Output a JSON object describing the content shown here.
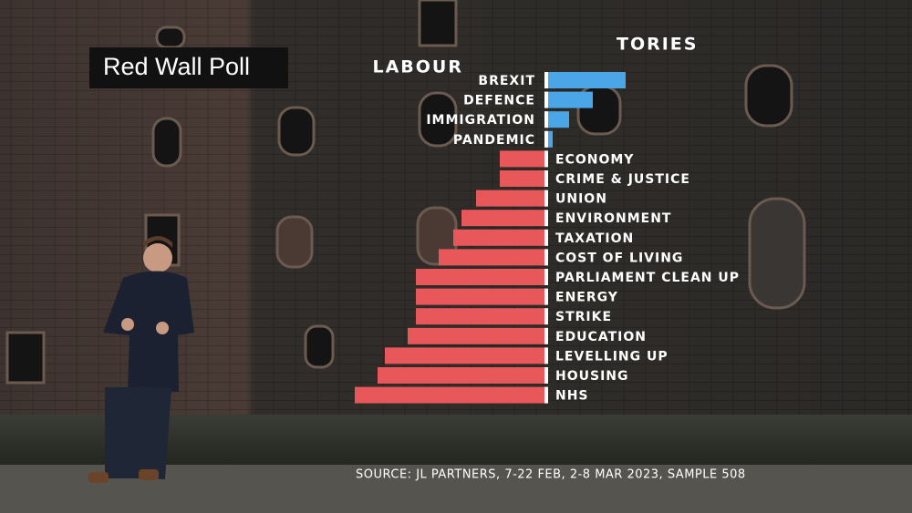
{
  "chart_data": {
    "type": "diverging-bar",
    "title": "Red Wall Poll",
    "source": "SOURCE:  JL PARTNERS, 7-22 FEB, 2-8 MAR 2023, SAMPLE 508",
    "categories": [
      "BREXIT",
      "DEFENCE",
      "IMMIGRATION",
      "PANDEMIC",
      "ECONOMY",
      "CRIME & JUSTICE",
      "UNION",
      "ENVIRONMENT",
      "TAXATION",
      "COST OF LIVING",
      "PARLIAMENT CLEAN UP",
      "ENERGY",
      "STRIKE",
      "EDUCATION",
      "LEVELLING UP",
      "HOUSING",
      "NHS"
    ],
    "series": [
      {
        "name": "LABOUR",
        "color": "#e8575a",
        "side": "left",
        "values": [
          null,
          null,
          null,
          null,
          49,
          49,
          75,
          91,
          100,
          116,
          141,
          141,
          141,
          150,
          175,
          183,
          208
        ]
      },
      {
        "name": "TORIES",
        "color": "#4aa6e6",
        "side": "right",
        "values": [
          89,
          53,
          27,
          9,
          null,
          null,
          null,
          null,
          null,
          null,
          null,
          null,
          null,
          null,
          null,
          null,
          null
        ]
      }
    ]
  }
}
